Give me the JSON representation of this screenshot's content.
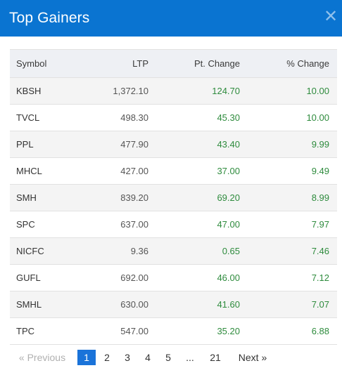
{
  "header": {
    "title": "Top Gainers",
    "close_symbol": "✕"
  },
  "table": {
    "columns": [
      "Symbol",
      "LTP",
      "Pt. Change",
      "% Change"
    ],
    "rows": [
      {
        "symbol": "KBSH",
        "ltp": "1,372.10",
        "pt_change": "124.70",
        "pct_change": "10.00"
      },
      {
        "symbol": "TVCL",
        "ltp": "498.30",
        "pt_change": "45.30",
        "pct_change": "10.00"
      },
      {
        "symbol": "PPL",
        "ltp": "477.90",
        "pt_change": "43.40",
        "pct_change": "9.99"
      },
      {
        "symbol": "MHCL",
        "ltp": "427.00",
        "pt_change": "37.00",
        "pct_change": "9.49"
      },
      {
        "symbol": "SMH",
        "ltp": "839.20",
        "pt_change": "69.20",
        "pct_change": "8.99"
      },
      {
        "symbol": "SPC",
        "ltp": "637.00",
        "pt_change": "47.00",
        "pct_change": "7.97"
      },
      {
        "symbol": "NICFC",
        "ltp": "9.36",
        "pt_change": "0.65",
        "pct_change": "7.46"
      },
      {
        "symbol": "GUFL",
        "ltp": "692.00",
        "pt_change": "46.00",
        "pct_change": "7.12"
      },
      {
        "symbol": "SMHL",
        "ltp": "630.00",
        "pt_change": "41.60",
        "pct_change": "7.07"
      },
      {
        "symbol": "TPC",
        "ltp": "547.00",
        "pt_change": "35.20",
        "pct_change": "6.88"
      }
    ]
  },
  "pagination": {
    "prev_label": "« Previous",
    "next_label": "Next »",
    "pages": [
      "1",
      "2",
      "3",
      "4",
      "5",
      "...",
      "21"
    ],
    "current_page": "1"
  },
  "colors": {
    "header_bg": "#0a74d1",
    "positive": "#2e8b3d",
    "active_page": "#1a73d9"
  }
}
